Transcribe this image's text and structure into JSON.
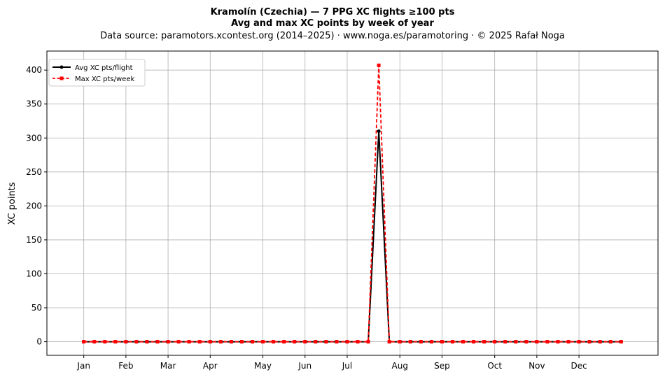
{
  "chart_data": {
    "type": "line",
    "title": "Kramolín (Czechia)  —  7 PPG XC flights ≥100 pts",
    "subtitle": "Avg and max XC points by week of year",
    "source": "Data source: paramotors.xcontest.org (2014–2025)  ·  www.noga.es/paramotoring  ·  © 2025 Rafał Noga",
    "xlabel": "",
    "ylabel": "XC points",
    "xlim": [
      -2.5,
      55.5
    ],
    "ylim": [
      -20,
      428
    ],
    "yticks": [
      0,
      50,
      100,
      150,
      200,
      250,
      300,
      350,
      400
    ],
    "xticks": [
      {
        "label": "Jan",
        "week": 1
      },
      {
        "label": "Feb",
        "week": 5
      },
      {
        "label": "Mar",
        "week": 9
      },
      {
        "label": "Apr",
        "week": 13
      },
      {
        "label": "May",
        "week": 18
      },
      {
        "label": "Jun",
        "week": 22
      },
      {
        "label": "Jul",
        "week": 26
      },
      {
        "label": "Aug",
        "week": 31
      },
      {
        "label": "Sep",
        "week": 35
      },
      {
        "label": "Oct",
        "week": 40
      },
      {
        "label": "Nov",
        "week": 44
      },
      {
        "label": "Dec",
        "week": 48
      }
    ],
    "grid": true,
    "legend_position": "top-left",
    "x": [
      1,
      2,
      3,
      4,
      5,
      6,
      7,
      8,
      9,
      10,
      11,
      12,
      13,
      14,
      15,
      16,
      17,
      18,
      19,
      20,
      21,
      22,
      23,
      24,
      25,
      26,
      27,
      28,
      29,
      30,
      31,
      32,
      33,
      34,
      35,
      36,
      37,
      38,
      39,
      40,
      41,
      42,
      43,
      44,
      45,
      46,
      47,
      48,
      49,
      50,
      51,
      52
    ],
    "series": [
      {
        "name": "Avg XC pts/flight",
        "color": "#000000",
        "style": "solid-circle",
        "values": [
          0,
          0,
          0,
          0,
          0,
          0,
          0,
          0,
          0,
          0,
          0,
          0,
          0,
          0,
          0,
          0,
          0,
          0,
          0,
          0,
          0,
          0,
          0,
          0,
          0,
          0,
          0,
          0,
          310,
          0,
          0,
          0,
          0,
          0,
          0,
          0,
          0,
          0,
          0,
          0,
          0,
          0,
          0,
          0,
          0,
          0,
          0,
          0,
          0,
          0,
          0,
          0
        ]
      },
      {
        "name": "Max XC pts/week",
        "color": "#ff0000",
        "style": "dashed-square",
        "values": [
          0,
          0,
          0,
          0,
          0,
          0,
          0,
          0,
          0,
          0,
          0,
          0,
          0,
          0,
          0,
          0,
          0,
          0,
          0,
          0,
          0,
          0,
          0,
          0,
          0,
          0,
          0,
          0,
          407,
          0,
          0,
          0,
          0,
          0,
          0,
          0,
          0,
          0,
          0,
          0,
          0,
          0,
          0,
          0,
          0,
          0,
          0,
          0,
          0,
          0,
          0,
          0
        ]
      }
    ]
  }
}
